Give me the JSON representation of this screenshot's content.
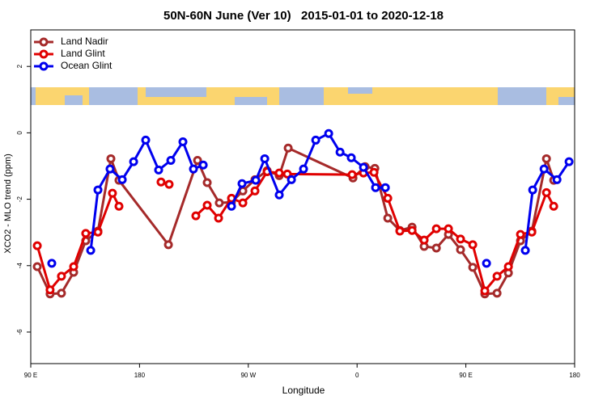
{
  "chart_data": {
    "type": "line",
    "title": "50N-60N June (Ver 10)   2015-01-01 to 2020-12-18",
    "x_label": "Longitude",
    "y_label": "XCO2 - MLO trend (ppm)",
    "xlim": [
      90,
      540
    ],
    "xticks": [
      {
        "value": 90,
        "label": "90 E"
      },
      {
        "value": 180,
        "label": "180"
      },
      {
        "value": 270,
        "label": "90 W"
      },
      {
        "value": 360,
        "label": "0"
      },
      {
        "value": 450,
        "label": "90 E"
      },
      {
        "value": 540,
        "label": "180"
      }
    ],
    "ylim": [
      -6.95,
      3.1
    ],
    "yticks": [
      -6,
      -4,
      -2,
      0,
      2
    ],
    "legend": "top-left",
    "series": [
      {
        "name": "Land Nadir",
        "color": "#a52a2a",
        "x": [
          95.4,
          106,
          115.4,
          125.5,
          135.5,
          145.6,
          156.3,
          163,
          203.9,
          228,
          236,
          246,
          256,
          265.5,
          275.5,
          285.6,
          295.6,
          303,
          356.6,
          366.6,
          374.7,
          385.4,
          395.4,
          405.5,
          415.5,
          425.6,
          435.6,
          445.6,
          455.7,
          465.7,
          475.8,
          485.2,
          495.2,
          504.6,
          516.7,
          522.7
        ],
        "values": [
          -4.03,
          -4.85,
          -4.83,
          -4.2,
          -3.25,
          -2.96,
          -0.78,
          -1.43,
          -3.37,
          -0.83,
          -1.5,
          -2.11,
          -2.09,
          -1.75,
          -1.41,
          -1.14,
          -1.29,
          -0.46,
          -1.36,
          -1.02,
          -1.07,
          -2.57,
          -2.94,
          -2.84,
          -3.42,
          -3.47,
          -3.06,
          -3.52,
          -4.05,
          -4.85,
          -4.83,
          -4.22,
          -3.25,
          -2.96,
          -0.78,
          -1.43
        ]
      },
      {
        "name": "Land Glint",
        "color": "#e00000",
        "x": [
          95.4,
          106,
          115.4,
          125.5,
          135.5,
          145.6,
          157.6,
          163,
          180,
          197.8,
          204.5,
          215,
          226.6,
          236,
          245.4,
          256.1,
          265.5,
          275.5,
          285.6,
          295.6,
          302.3,
          355.9,
          365.3,
          374,
          385.4,
          395.4,
          405.5,
          415.5,
          425.6,
          435.6,
          445.6,
          455.7,
          465.7,
          475.8,
          485.2,
          495.2,
          504.6,
          516.7,
          522.7
        ],
        "values": [
          -3.4,
          -4.73,
          -4.32,
          -4.03,
          -3.03,
          -2.99,
          -1.82,
          -2.21,
          null,
          -1.48,
          -1.55,
          null,
          -2.5,
          -2.18,
          -2.57,
          -1.97,
          -2.11,
          -1.75,
          -1.17,
          -1.21,
          -1.24,
          -1.26,
          -1.21,
          -1.19,
          -1.97,
          -2.96,
          -2.94,
          -3.23,
          -2.89,
          -2.89,
          -3.2,
          -3.37,
          -4.76,
          -4.32,
          -4.03,
          -3.06,
          -2.99,
          -1.8,
          -2.21
        ]
      },
      {
        "name": "Ocean Glint",
        "color": "#0000ee",
        "x": [
          107.4,
          120,
          139.6,
          145.6,
          155.6,
          165.7,
          175.1,
          185.1,
          195.8,
          205.9,
          215.9,
          224.6,
          232.7,
          245,
          256.1,
          264.8,
          276.2,
          283.6,
          295.6,
          305.7,
          315.7,
          325.8,
          336.5,
          345.9,
          355.2,
          365.3,
          375.3,
          383.4,
          420,
          467.1,
          480,
          499.2,
          505.3,
          514.7,
          525.4,
          535.4
        ],
        "values": [
          -3.93,
          null,
          -3.54,
          -1.72,
          -1.09,
          -1.41,
          -0.87,
          -0.22,
          -1.12,
          -0.83,
          -0.27,
          -1.09,
          -0.97,
          null,
          -2.21,
          -1.53,
          -1.43,
          -0.78,
          -1.87,
          -1.41,
          -1.09,
          -0.22,
          -0.02,
          -0.58,
          -0.75,
          -1.04,
          -1.65,
          -1.65,
          null,
          -3.93,
          null,
          -3.54,
          -1.72,
          -1.09,
          -1.41,
          -0.87
        ]
      }
    ]
  }
}
